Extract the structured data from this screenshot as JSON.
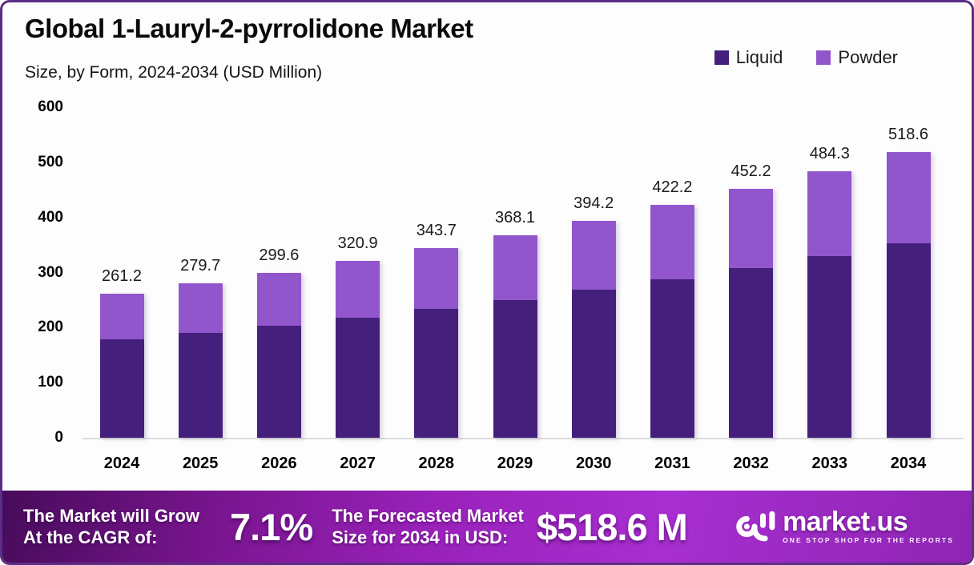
{
  "header": {
    "title": "Global 1-Lauryl-2-pyrrolidone Market",
    "subtitle": "Size, by Form, 2024-2034 (USD Million)"
  },
  "legend": {
    "items": [
      {
        "label": "Liquid",
        "color": "#44207c"
      },
      {
        "label": "Powder",
        "color": "#9256cc"
      }
    ]
  },
  "chart_data": {
    "type": "bar",
    "stacked": true,
    "title": "Global 1-Lauryl-2-pyrrolidone Market Size, by Form, 2024-2034 (USD Million)",
    "categories": [
      "2024",
      "2025",
      "2026",
      "2027",
      "2028",
      "2029",
      "2030",
      "2031",
      "2032",
      "2033",
      "2034"
    ],
    "series": [
      {
        "name": "Liquid",
        "color": "#44207c",
        "values": [
          178.0,
          190.5,
          204.0,
          218.0,
          233.5,
          250.0,
          268.5,
          288.0,
          308.5,
          330.5,
          353.5
        ]
      },
      {
        "name": "Powder",
        "color": "#9256cc",
        "values": [
          83.2,
          89.2,
          95.6,
          102.9,
          110.2,
          118.1,
          125.7,
          134.2,
          143.7,
          153.8,
          165.1
        ]
      }
    ],
    "totals": [
      261.2,
      279.7,
      299.6,
      320.9,
      343.7,
      368.1,
      394.2,
      422.2,
      452.2,
      484.3,
      518.6
    ],
    "total_labels": [
      "261.2",
      "279.7",
      "299.6",
      "320.9",
      "343.7",
      "368.1",
      "394.2",
      "422.2",
      "452.2",
      "484.3",
      "518.6"
    ],
    "xlabel": "",
    "ylabel": "",
    "ylim": [
      0,
      600
    ],
    "yticks": [
      0,
      100,
      200,
      300,
      400,
      500,
      600
    ],
    "grid": false,
    "legend_position": "top-right"
  },
  "banner": {
    "cagr_label_line1": "The Market will Grow",
    "cagr_label_line2": "At the CAGR of:",
    "cagr_value": "7.1%",
    "forecast_label_line1": "The Forecasted Market",
    "forecast_label_line2": "Size for 2034 in USD:",
    "forecast_value": "$518.6 M",
    "logo_text": "market.us",
    "logo_tagline": "ONE STOP SHOP FOR THE REPORTS"
  },
  "colors": {
    "liquid": "#44207c",
    "powder": "#9256cc",
    "border": "#5b2d87",
    "banner_gradient_start": "#470b5a",
    "banner_gradient_mid": "#a82ed1",
    "banner_gradient_end": "#8e25b2",
    "axis_line": "#dcdcdc"
  }
}
